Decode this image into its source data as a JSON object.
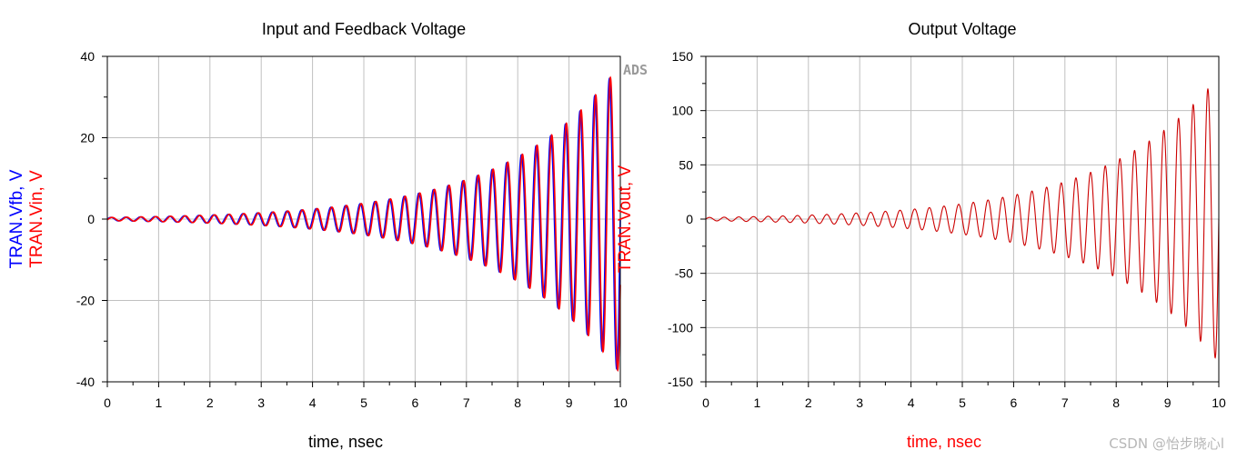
{
  "watermark": "CSDN @怡步晓心l",
  "colors": {
    "blue": "#0000ff",
    "red": "#ff0000",
    "dark_red": "#cc0000",
    "grid": "#c0c0c0"
  },
  "chart_data": [
    {
      "type": "line",
      "title": "Input and Feedback Voltage",
      "xlabel": "time, nsec",
      "ylabel_left": [
        "TRAN.Vfb, V",
        "TRAN.Vin, V"
      ],
      "ylabel_right": "TRAN.Vout, V",
      "corner_label": "ADS",
      "xlim": [
        0,
        10
      ],
      "ylim": [
        -40,
        40
      ],
      "xticks": [
        0,
        1,
        2,
        3,
        4,
        5,
        6,
        7,
        8,
        9,
        10
      ],
      "yticks": [
        -40,
        -20,
        0,
        20,
        40
      ],
      "grid": true,
      "signal": {
        "shape": "growing sinusoid",
        "frequency_ghz": 3.5,
        "amplitude_at_t0": 0.4,
        "amplitude_at_t10": 38
      },
      "series": [
        {
          "name": "TRAN.Vfb",
          "color": "#0000ff",
          "phase_shift_ns": 0.0
        },
        {
          "name": "TRAN.Vin",
          "color": "#ff0000",
          "phase_shift_ns": 0.02
        }
      ]
    },
    {
      "type": "line",
      "title": "Output Voltage",
      "xlabel": "time, nsec",
      "xlim": [
        0,
        10
      ],
      "ylim": [
        -150,
        150
      ],
      "xticks": [
        0,
        1,
        2,
        3,
        4,
        5,
        6,
        7,
        8,
        9,
        10
      ],
      "yticks": [
        -150,
        -100,
        -50,
        0,
        50,
        100,
        150
      ],
      "grid": true,
      "signal": {
        "shape": "growing sinusoid",
        "frequency_ghz": 3.5,
        "amplitude_at_t0": 1.5,
        "amplitude_at_t10": 132
      },
      "series": [
        {
          "name": "TRAN.Vout",
          "color": "#cc0000",
          "phase_shift_ns": 0.0
        }
      ]
    }
  ]
}
